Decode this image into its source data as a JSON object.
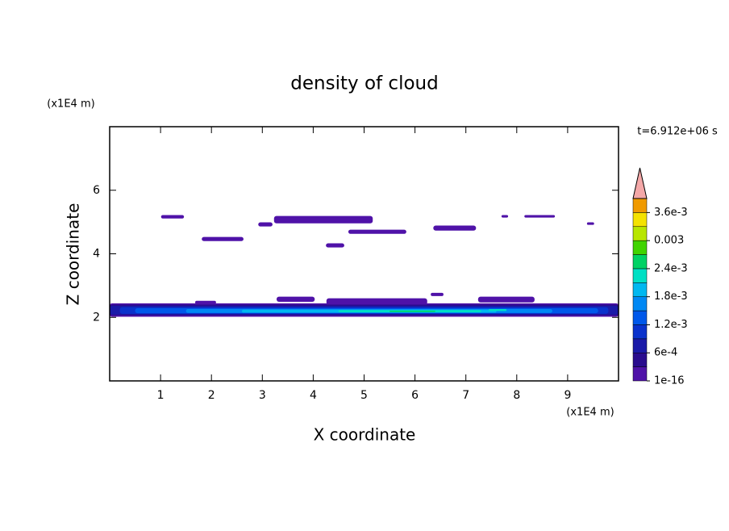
{
  "chart_data": {
    "type": "contour",
    "title": "density of cloud",
    "x_label": "X coordinate",
    "y_label": "Z coordinate",
    "x_unit": "(x1E4 m)",
    "y_unit": "(x1E4 m)",
    "time_label": "t=6.912e+06 s",
    "xlim": [
      0,
      10
    ],
    "xticks": [
      1,
      2,
      3,
      4,
      5,
      6,
      7,
      8,
      9
    ],
    "ylim": [
      0,
      8
    ],
    "yticks": [
      2,
      4,
      6
    ],
    "colorbar": {
      "clim": [
        0,
        0.0039
      ],
      "colors": [
        "#4f12a8",
        "#2a0c8e",
        "#1a1aa8",
        "#0a32cc",
        "#0058ea",
        "#0088f4",
        "#00b8f0",
        "#00e0c4",
        "#00d264",
        "#40d400",
        "#b8e600",
        "#f4e200",
        "#f09a00"
      ],
      "extend_color": "#f4a8a8",
      "ticks": [
        1e-16,
        {
          "value": 0.0006,
          "label": "6e-4"
        },
        {
          "value": 0.0012,
          "label": "1.2e-3"
        },
        {
          "value": 0.0018,
          "label": "1.8e-3"
        },
        {
          "value": 0.0024,
          "label": "2.4e-3"
        },
        0.003,
        {
          "value": 0.0036,
          "label": "3.6e-3"
        }
      ]
    },
    "patches": [
      {
        "x": [
          1.01,
          1.46
        ],
        "z": [
          5.11,
          5.22
        ],
        "value": 0.00015
      },
      {
        "x": [
          1.81,
          2.63
        ],
        "z": [
          4.4,
          4.53
        ],
        "value": 0.00015
      },
      {
        "x": [
          2.92,
          3.2
        ],
        "z": [
          4.86,
          4.99
        ],
        "value": 0.00015
      },
      {
        "x": [
          3.23,
          5.17
        ],
        "z": [
          4.96,
          5.19
        ],
        "value": 0.00015
      },
      {
        "x": [
          4.25,
          4.61
        ],
        "z": [
          4.2,
          4.33
        ],
        "value": 0.00015
      },
      {
        "x": [
          4.69,
          5.83
        ],
        "z": [
          4.63,
          4.76
        ],
        "value": 0.00015
      },
      {
        "x": [
          6.36,
          7.2
        ],
        "z": [
          4.73,
          4.89
        ],
        "value": 0.00015
      },
      {
        "x": [
          7.7,
          7.83
        ],
        "z": [
          5.14,
          5.22
        ],
        "value": 0.00015
      },
      {
        "x": [
          8.15,
          8.75
        ],
        "z": [
          5.14,
          5.22
        ],
        "value": 0.00015
      },
      {
        "x": [
          9.38,
          9.52
        ],
        "z": [
          4.91,
          4.99
        ],
        "value": 0.00015
      },
      {
        "x": [
          3.28,
          4.03
        ],
        "z": [
          2.49,
          2.65
        ],
        "value": 0.00015
      },
      {
        "x": [
          6.31,
          6.56
        ],
        "z": [
          2.67,
          2.77
        ],
        "value": 0.00015
      },
      {
        "x": [
          4.26,
          6.24
        ],
        "z": [
          2.39,
          2.6
        ],
        "value": 0.00015
      },
      {
        "x": [
          7.24,
          8.35
        ],
        "z": [
          2.47,
          2.65
        ],
        "value": 0.00015
      },
      {
        "x": [
          1.68,
          2.09
        ],
        "z": [
          2.42,
          2.52
        ],
        "value": 0.00015
      },
      {
        "x": [
          0.0,
          10.0
        ],
        "z": [
          2.02,
          2.44
        ],
        "value": 0.00015
      },
      {
        "x": [
          0.0,
          10.0
        ],
        "z": [
          2.06,
          2.4
        ],
        "value": 0.00045
      },
      {
        "x": [
          0.0,
          10.0
        ],
        "z": [
          2.09,
          2.36
        ],
        "value": 0.00075
      },
      {
        "x": [
          0.2,
          9.8
        ],
        "z": [
          2.11,
          2.32
        ],
        "value": 0.00105
      },
      {
        "x": [
          0.5,
          9.6
        ],
        "z": [
          2.13,
          2.29
        ],
        "value": 0.00135
      },
      {
        "x": [
          1.5,
          8.7
        ],
        "z": [
          2.14,
          2.26
        ],
        "value": 0.00165
      },
      {
        "x": [
          2.6,
          7.6
        ],
        "z": [
          2.15,
          2.24
        ],
        "value": 0.00195
      },
      {
        "x": [
          4.5,
          7.3
        ],
        "z": [
          2.16,
          2.23
        ],
        "value": 0.00225
      },
      {
        "x": [
          5.5,
          6.4
        ],
        "z": [
          2.17,
          2.21
        ],
        "value": 0.00255
      },
      {
        "x": [
          7.45,
          7.8
        ],
        "z": [
          2.2,
          2.26
        ],
        "value": 0.00225
      }
    ]
  }
}
